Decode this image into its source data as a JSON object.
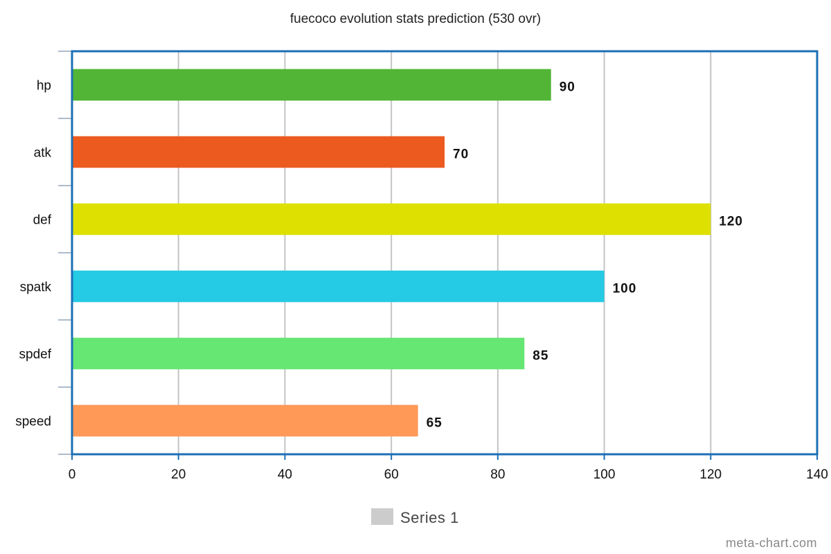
{
  "chart_data": {
    "type": "bar",
    "orientation": "horizontal",
    "title": "fuecoco evolution stats prediction (530 ovr)",
    "categories": [
      "hp",
      "atk",
      "def",
      "spatk",
      "spdef",
      "speed"
    ],
    "series": [
      {
        "name": "Series 1",
        "values": [
          90,
          70,
          120,
          100,
          85,
          65
        ],
        "colors": [
          "#52b535",
          "#ec5a1f",
          "#dde000",
          "#25cae4",
          "#66e673",
          "#ff9957"
        ]
      }
    ],
    "x_ticks": [
      0,
      20,
      40,
      60,
      80,
      100,
      120,
      140
    ],
    "xlim": [
      0,
      140
    ],
    "grid": true,
    "data_labels": true,
    "legend": {
      "placement": "bottom",
      "label": "Series 1",
      "swatch_color": "#cccccc"
    },
    "frame_color": "#1b6fb5"
  },
  "credit": "meta-chart.com"
}
